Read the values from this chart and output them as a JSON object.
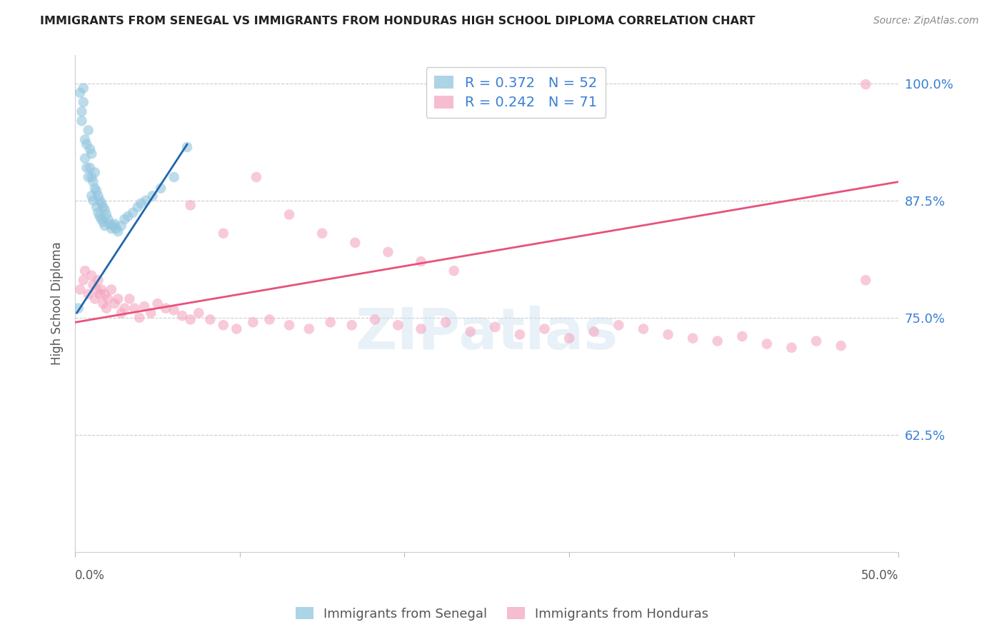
{
  "title": "IMMIGRANTS FROM SENEGAL VS IMMIGRANTS FROM HONDURAS HIGH SCHOOL DIPLOMA CORRELATION CHART",
  "source": "Source: ZipAtlas.com",
  "ylabel": "High School Diploma",
  "ytick_labels": [
    "100.0%",
    "87.5%",
    "75.0%",
    "62.5%"
  ],
  "ytick_values": [
    1.0,
    0.875,
    0.75,
    0.625
  ],
  "xmin": 0.0,
  "xmax": 0.5,
  "ymin": 0.5,
  "ymax": 1.03,
  "watermark": "ZIPatlas",
  "senegal_color": "#92c5de",
  "honduras_color": "#f4a6c0",
  "senegal_line_color": "#2166ac",
  "honduras_line_color": "#e8517a",
  "senegal_line_x": [
    0.001,
    0.068
  ],
  "senegal_line_y": [
    0.755,
    0.935
  ],
  "honduras_line_x": [
    0.0,
    0.5
  ],
  "honduras_line_y": [
    0.745,
    0.895
  ],
  "senegal_x": [
    0.002,
    0.003,
    0.004,
    0.004,
    0.005,
    0.005,
    0.006,
    0.006,
    0.007,
    0.007,
    0.008,
    0.008,
    0.009,
    0.009,
    0.01,
    0.01,
    0.01,
    0.011,
    0.011,
    0.012,
    0.012,
    0.013,
    0.013,
    0.014,
    0.014,
    0.015,
    0.015,
    0.016,
    0.016,
    0.017,
    0.017,
    0.018,
    0.018,
    0.019,
    0.02,
    0.021,
    0.022,
    0.023,
    0.024,
    0.025,
    0.026,
    0.028,
    0.03,
    0.032,
    0.035,
    0.038,
    0.04,
    0.043,
    0.047,
    0.052,
    0.06,
    0.068
  ],
  "senegal_y": [
    0.76,
    0.99,
    0.97,
    0.96,
    0.98,
    0.995,
    0.94,
    0.92,
    0.935,
    0.91,
    0.95,
    0.9,
    0.93,
    0.91,
    0.925,
    0.9,
    0.88,
    0.895,
    0.875,
    0.905,
    0.888,
    0.885,
    0.868,
    0.88,
    0.862,
    0.875,
    0.858,
    0.872,
    0.855,
    0.868,
    0.852,
    0.865,
    0.848,
    0.86,
    0.855,
    0.85,
    0.845,
    0.848,
    0.85,
    0.845,
    0.842,
    0.848,
    0.855,
    0.858,
    0.862,
    0.868,
    0.872,
    0.875,
    0.88,
    0.888,
    0.9,
    0.932
  ],
  "honduras_x": [
    0.003,
    0.005,
    0.006,
    0.008,
    0.01,
    0.011,
    0.012,
    0.013,
    0.014,
    0.015,
    0.016,
    0.017,
    0.018,
    0.019,
    0.02,
    0.022,
    0.024,
    0.026,
    0.028,
    0.03,
    0.033,
    0.036,
    0.039,
    0.042,
    0.046,
    0.05,
    0.055,
    0.06,
    0.065,
    0.07,
    0.075,
    0.082,
    0.09,
    0.098,
    0.108,
    0.118,
    0.13,
    0.142,
    0.155,
    0.168,
    0.182,
    0.196,
    0.21,
    0.225,
    0.24,
    0.255,
    0.27,
    0.285,
    0.3,
    0.315,
    0.33,
    0.345,
    0.36,
    0.375,
    0.39,
    0.405,
    0.42,
    0.435,
    0.45,
    0.465,
    0.07,
    0.09,
    0.11,
    0.13,
    0.15,
    0.17,
    0.19,
    0.21,
    0.23,
    0.48,
    0.48
  ],
  "honduras_y": [
    0.78,
    0.79,
    0.8,
    0.775,
    0.795,
    0.785,
    0.77,
    0.78,
    0.79,
    0.775,
    0.78,
    0.765,
    0.775,
    0.76,
    0.77,
    0.78,
    0.765,
    0.77,
    0.755,
    0.76,
    0.77,
    0.76,
    0.75,
    0.762,
    0.755,
    0.765,
    0.76,
    0.758,
    0.752,
    0.748,
    0.755,
    0.748,
    0.742,
    0.738,
    0.745,
    0.748,
    0.742,
    0.738,
    0.745,
    0.742,
    0.748,
    0.742,
    0.738,
    0.745,
    0.735,
    0.74,
    0.732,
    0.738,
    0.728,
    0.735,
    0.742,
    0.738,
    0.732,
    0.728,
    0.725,
    0.73,
    0.722,
    0.718,
    0.725,
    0.72,
    0.87,
    0.84,
    0.9,
    0.86,
    0.84,
    0.83,
    0.82,
    0.81,
    0.8,
    0.79,
    0.999
  ],
  "legend_label_senegal": "R = 0.372   N = 52",
  "legend_label_honduras": "R = 0.242   N = 71",
  "bottom_label_senegal": "Immigrants from Senegal",
  "bottom_label_honduras": "Immigrants from Honduras"
}
